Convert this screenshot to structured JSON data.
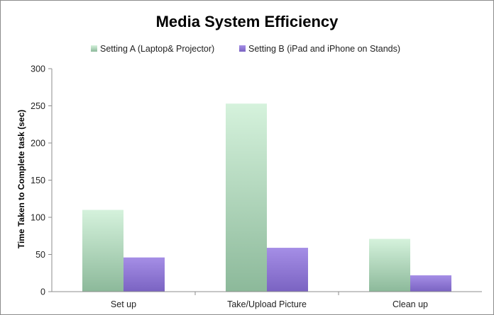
{
  "chart_data": {
    "type": "bar",
    "title": "Media System Efficiency",
    "xlabel": "",
    "ylabel": "Time Taken to Complete task (sec)",
    "categories": [
      "Set up",
      "Take/Upload Picture",
      "Clean up"
    ],
    "series": [
      {
        "name": "Setting A (Laptop& Projector)",
        "values": [
          110,
          253,
          71
        ],
        "color_top": "#d5f2dc",
        "color_bottom": "#8cb99a"
      },
      {
        "name": "Setting B (iPad and iPhone on Stands)",
        "values": [
          46,
          59,
          22
        ],
        "color_top": "#a58ee6",
        "color_bottom": "#7a63c2"
      }
    ],
    "ylim": [
      0,
      300
    ],
    "yticks": [
      "0",
      "50",
      "100",
      "150",
      "200",
      "250",
      "300"
    ],
    "grid": false,
    "legend_position": "top"
  }
}
